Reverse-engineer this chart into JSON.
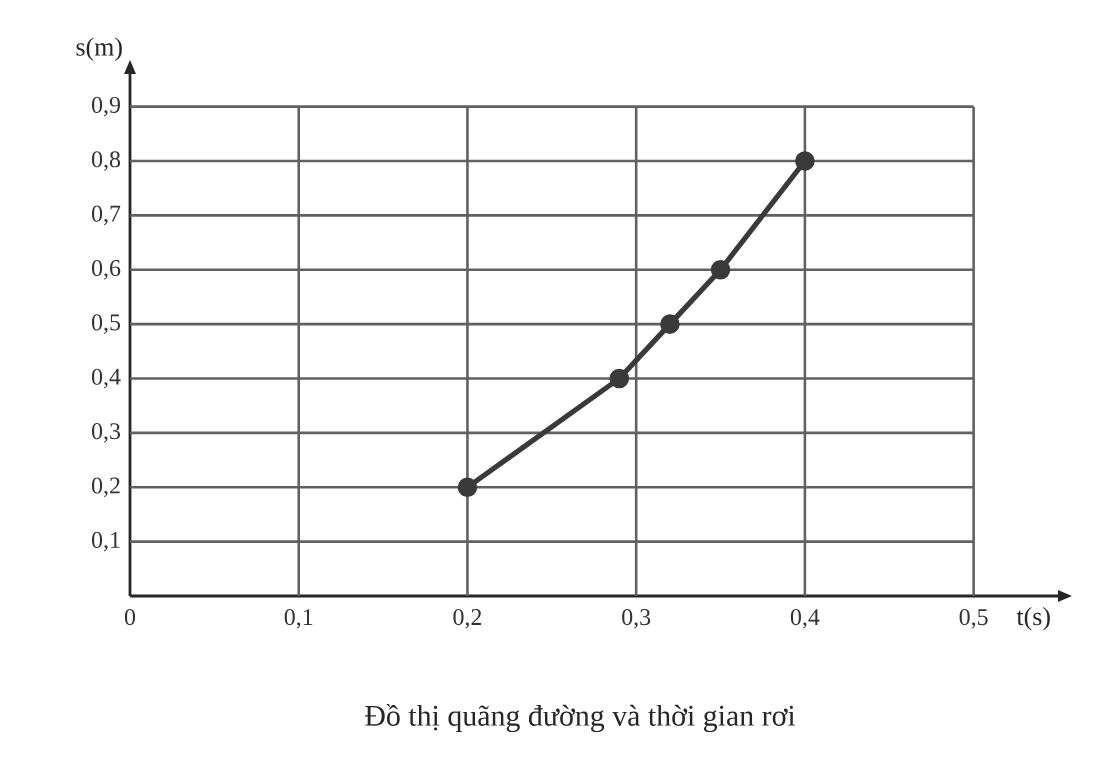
{
  "chart_data": {
    "type": "line",
    "title": "Đồ thị quãng đường và thời gian rơi",
    "xlabel": "t(s)",
    "ylabel": "s(m)",
    "x": [
      0.2,
      0.29,
      0.32,
      0.35,
      0.4
    ],
    "values": [
      0.2,
      0.4,
      0.5,
      0.6,
      0.8
    ],
    "color": "#3a3a3a",
    "marker": "circle",
    "line_style": "solid",
    "grid": true,
    "xlim": [
      0,
      0.55
    ],
    "ylim": [
      0,
      0.96
    ],
    "xticks": [
      {
        "value": 0,
        "label": "0"
      },
      {
        "value": 0.1,
        "label": "0,1"
      },
      {
        "value": 0.2,
        "label": "0,2"
      },
      {
        "value": 0.3,
        "label": "0,3"
      },
      {
        "value": 0.4,
        "label": "0,4"
      },
      {
        "value": 0.5,
        "label": "0,5"
      }
    ],
    "yticks": [
      {
        "value": 0.1,
        "label": "0,1"
      },
      {
        "value": 0.2,
        "label": "0,2"
      },
      {
        "value": 0.3,
        "label": "0,3"
      },
      {
        "value": 0.4,
        "label": "0,4"
      },
      {
        "value": 0.5,
        "label": "0,5"
      },
      {
        "value": 0.6,
        "label": "0,6"
      },
      {
        "value": 0.7,
        "label": "0,7"
      },
      {
        "value": 0.8,
        "label": "0,8"
      },
      {
        "value": 0.9,
        "label": "0,9"
      }
    ]
  }
}
